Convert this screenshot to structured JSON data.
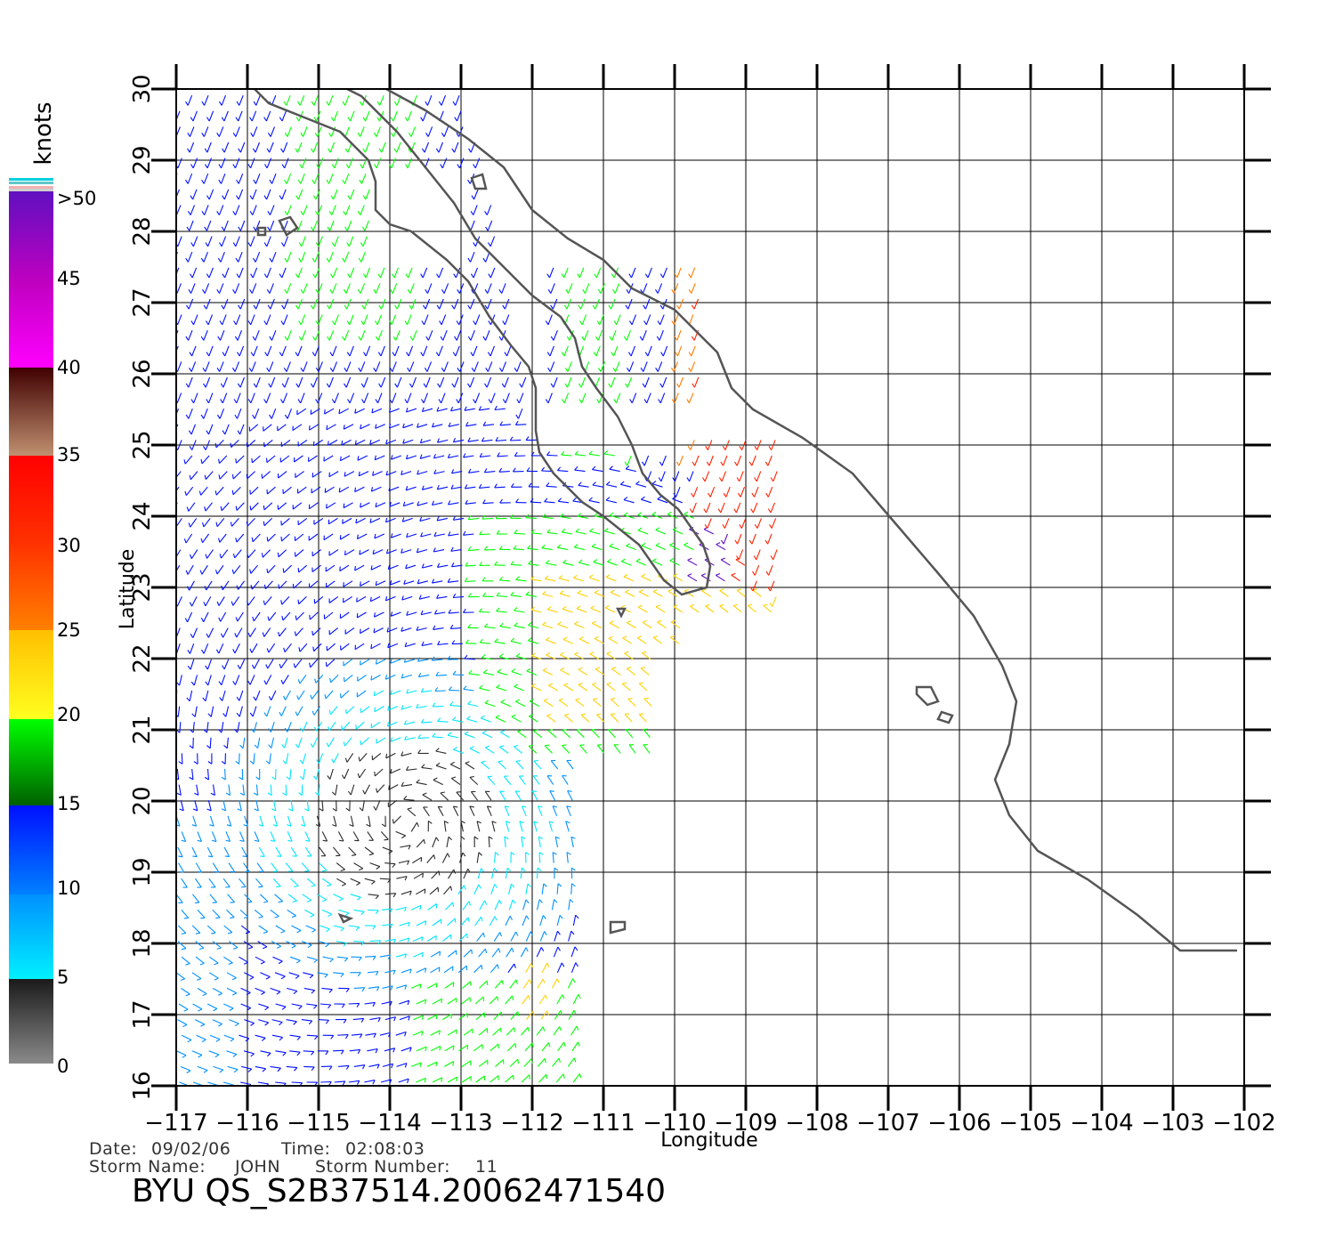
{
  "axes": {
    "xlabel": "Longitude",
    "ylabel": "Latitude",
    "lon_ticks": [
      "-117",
      "-116",
      "-115",
      "-114",
      "-113",
      "-112",
      "-111",
      "-110",
      "-109",
      "-108",
      "-107",
      "-106",
      "-105",
      "-104",
      "-103",
      "-102"
    ],
    "lat_ticks": [
      "16",
      "17",
      "18",
      "19",
      "20",
      "21",
      "22",
      "23",
      "24",
      "25",
      "26",
      "27",
      "28",
      "29",
      "30"
    ],
    "lon_range": [
      -117,
      -102
    ],
    "lat_range": [
      16,
      30
    ],
    "grid": true
  },
  "legend": {
    "unit": "knots",
    "labels": [
      "0",
      "5",
      "10",
      "15",
      "20",
      "25",
      "30",
      "35",
      "40",
      "45",
      ">50"
    ],
    "colors": {
      "gray": "#8a8a8a",
      "black": "#2a2a2a",
      "cyan": "#00e5ff",
      "blue": "#0010ff",
      "dkgreen": "#007000",
      "green": "#00ff00",
      "yellow": "#ffd000",
      "orange": "#ff7a00",
      "red": "#ff2000",
      "brown": "#b87850",
      "magenta": "#ff00ff",
      "purple": "#6010c0"
    }
  },
  "meta": {
    "date_label": "Date:",
    "date": "09/02/06",
    "time_label": "Time:",
    "time": "02:08:03",
    "storm_name_label": "Storm Name:",
    "storm_name": "JOHN",
    "storm_number_label": "Storm Number:",
    "storm_number": "11"
  },
  "title": "BYU QS_S2B37514.20062471540",
  "storm": {
    "center_lon": -113.8,
    "center_lat": 19.7
  },
  "coastline": {
    "baja_pacific": [
      [
        -115.9,
        30
      ],
      [
        -115.7,
        29.8
      ],
      [
        -115.2,
        29.6
      ],
      [
        -114.7,
        29.4
      ],
      [
        -114.3,
        29
      ],
      [
        -114.2,
        28.7
      ],
      [
        -114.2,
        28.3
      ],
      [
        -114,
        28.1
      ],
      [
        -113.7,
        28
      ],
      [
        -113.2,
        27.6
      ],
      [
        -112.9,
        27.3
      ],
      [
        -112.6,
        26.8
      ],
      [
        -112.3,
        26.4
      ],
      [
        -112.05,
        26.1
      ],
      [
        -111.95,
        25.8
      ],
      [
        -111.95,
        25.2
      ],
      [
        -111.9,
        24.9
      ],
      [
        -111.7,
        24.6
      ],
      [
        -111.3,
        24.2
      ],
      [
        -111,
        24
      ],
      [
        -110.5,
        23.6
      ],
      [
        -110.15,
        23.1
      ],
      [
        -109.9,
        22.9
      ],
      [
        -109.55,
        23
      ],
      [
        -109.5,
        23.3
      ],
      [
        -109.6,
        23.6
      ],
      [
        -109.95,
        24.1
      ]
    ],
    "baja_gulf": [
      [
        -109.95,
        24.1
      ],
      [
        -110.2,
        24.3
      ],
      [
        -110.45,
        24.6
      ],
      [
        -110.6,
        25
      ],
      [
        -110.8,
        25.4
      ],
      [
        -111.1,
        25.8
      ],
      [
        -111.3,
        26.1
      ],
      [
        -111.4,
        26.5
      ],
      [
        -111.6,
        26.8
      ],
      [
        -112,
        27.1
      ],
      [
        -112.3,
        27.4
      ],
      [
        -112.8,
        27.9
      ],
      [
        -113.1,
        28.4
      ],
      [
        -113.5,
        28.9
      ],
      [
        -113.9,
        29.4
      ],
      [
        -114.4,
        29.9
      ],
      [
        -114.6,
        30
      ]
    ],
    "mainland": [
      [
        -114.05,
        30
      ],
      [
        -113.5,
        29.7
      ],
      [
        -112.9,
        29.3
      ],
      [
        -112.4,
        28.9
      ],
      [
        -112,
        28.3
      ],
      [
        -111.5,
        27.9
      ],
      [
        -111,
        27.6
      ],
      [
        -110.6,
        27.2
      ],
      [
        -110,
        26.9
      ],
      [
        -109.4,
        26.3
      ],
      [
        -109.2,
        25.8
      ],
      [
        -108.9,
        25.5
      ],
      [
        -108.2,
        25.1
      ],
      [
        -107.5,
        24.6
      ],
      [
        -106.9,
        23.9
      ],
      [
        -106.3,
        23.2
      ],
      [
        -105.8,
        22.6
      ],
      [
        -105.4,
        21.9
      ],
      [
        -105.2,
        21.4
      ],
      [
        -105.3,
        20.8
      ],
      [
        -105.5,
        20.3
      ],
      [
        -105.3,
        19.8
      ],
      [
        -104.9,
        19.3
      ],
      [
        -104.2,
        18.9
      ],
      [
        -103.5,
        18.4
      ],
      [
        -102.9,
        17.9
      ],
      [
        -102.1,
        17.9
      ]
    ],
    "islands": [
      [
        [
          -106.6,
          21.6
        ],
        [
          -106.4,
          21.6
        ],
        [
          -106.3,
          21.4
        ],
        [
          -106.45,
          21.35
        ],
        [
          -106.6,
          21.5
        ]
      ],
      [
        [
          -106.25,
          21.25
        ],
        [
          -106.1,
          21.2
        ],
        [
          -106.15,
          21.1
        ],
        [
          -106.3,
          21.15
        ]
      ],
      [
        [
          -115.55,
          28.15
        ],
        [
          -115.4,
          28.2
        ],
        [
          -115.3,
          28.05
        ],
        [
          -115.45,
          27.95
        ]
      ],
      [
        [
          -115.85,
          28.05
        ],
        [
          -115.75,
          28.05
        ],
        [
          -115.75,
          27.95
        ],
        [
          -115.85,
          27.95
        ]
      ],
      [
        [
          -112.85,
          28.75
        ],
        [
          -112.7,
          28.8
        ],
        [
          -112.65,
          28.6
        ],
        [
          -112.8,
          28.6
        ]
      ],
      [
        [
          -110.9,
          18.3
        ],
        [
          -110.7,
          18.3
        ],
        [
          -110.7,
          18.2
        ],
        [
          -110.9,
          18.15
        ]
      ],
      [
        [
          -114.7,
          18.4
        ],
        [
          -114.55,
          18.35
        ],
        [
          -114.65,
          18.3
        ]
      ],
      [
        [
          -110.8,
          22.7
        ],
        [
          -110.7,
          22.7
        ],
        [
          -110.75,
          22.6
        ]
      ]
    ]
  }
}
